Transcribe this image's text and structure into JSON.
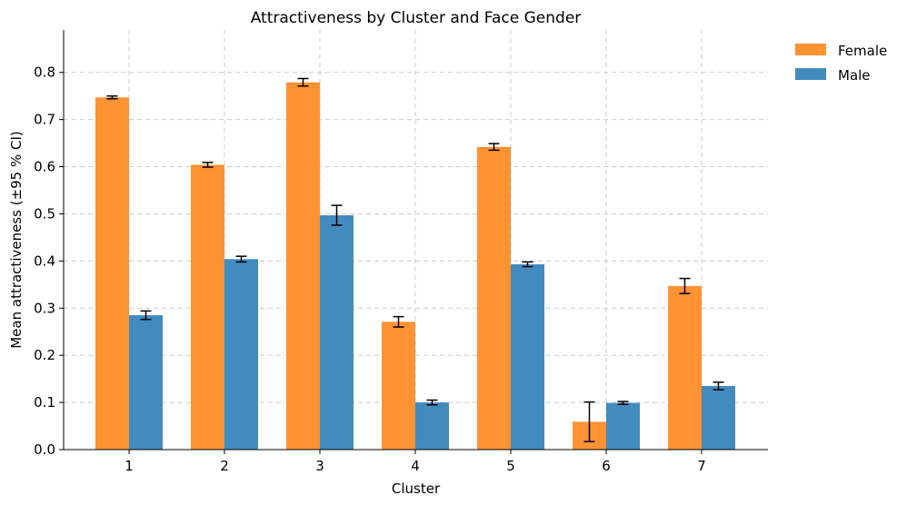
{
  "chart_data": {
    "type": "bar",
    "title": "Attractiveness by Cluster and Face Gender",
    "xlabel": "Cluster",
    "ylabel": "Mean attractiveness (±95 % CI)",
    "categories": [
      "1",
      "2",
      "3",
      "4",
      "5",
      "6",
      "7"
    ],
    "ylim": [
      0,
      0.89
    ],
    "yticks": [
      0.0,
      0.1,
      0.2,
      0.3,
      0.4,
      0.5,
      0.6,
      0.7,
      0.8
    ],
    "ytick_labels": [
      "0.0",
      "0.1",
      "0.2",
      "0.3",
      "0.4",
      "0.5",
      "0.6",
      "0.7",
      "0.8"
    ],
    "grid": true,
    "legend_position": "top-right-outside",
    "series": [
      {
        "name": "Female",
        "color": "#ff9233",
        "values": [
          0.747,
          0.604,
          0.779,
          0.271,
          0.642,
          0.059,
          0.347
        ],
        "ci_low": [
          0.744,
          0.599,
          0.771,
          0.26,
          0.635,
          0.017,
          0.331
        ],
        "ci_high": [
          0.75,
          0.609,
          0.787,
          0.282,
          0.649,
          0.101,
          0.363
        ]
      },
      {
        "name": "Male",
        "color": "#428bbf",
        "values": [
          0.285,
          0.404,
          0.497,
          0.1,
          0.393,
          0.099,
          0.135
        ],
        "ci_low": [
          0.276,
          0.398,
          0.476,
          0.095,
          0.388,
          0.096,
          0.127
        ],
        "ci_high": [
          0.294,
          0.41,
          0.518,
          0.105,
          0.398,
          0.102,
          0.143
        ]
      }
    ]
  }
}
